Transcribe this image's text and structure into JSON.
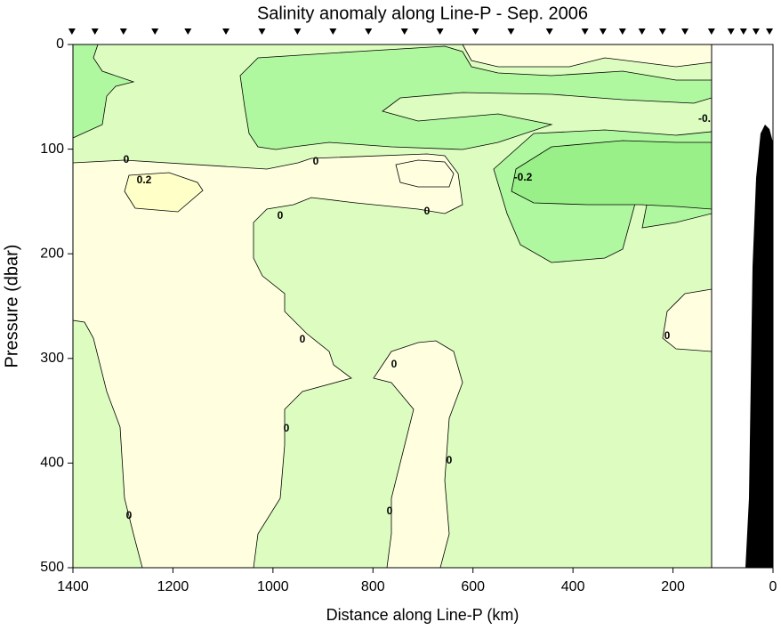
{
  "chart_data": {
    "type": "contour",
    "title": "Salinity anomaly along Line-P - Sep. 2006",
    "x_label": "Distance along Line-P (km)",
    "y_label": "Pressure (dbar)",
    "xlim": [
      1400,
      0
    ],
    "xticks": [
      1400,
      1200,
      1000,
      800,
      600,
      400,
      200,
      0
    ],
    "ylim": [
      0,
      500
    ],
    "yticks": [
      0,
      100,
      200,
      300,
      400,
      500
    ],
    "stations": [
      1402,
      1356,
      1299,
      1236,
      1170,
      1094,
      1022,
      951,
      880,
      809,
      737,
      666,
      595,
      524,
      447,
      376,
      340,
      301,
      262,
      221,
      176,
      123,
      84,
      59,
      34,
      7
    ],
    "contour_labels": [
      "0",
      "0.2",
      "0",
      "0",
      "0",
      "-0.2",
      "-0.",
      "0",
      "0",
      "0",
      "0",
      "0",
      "0",
      "0"
    ]
  }
}
